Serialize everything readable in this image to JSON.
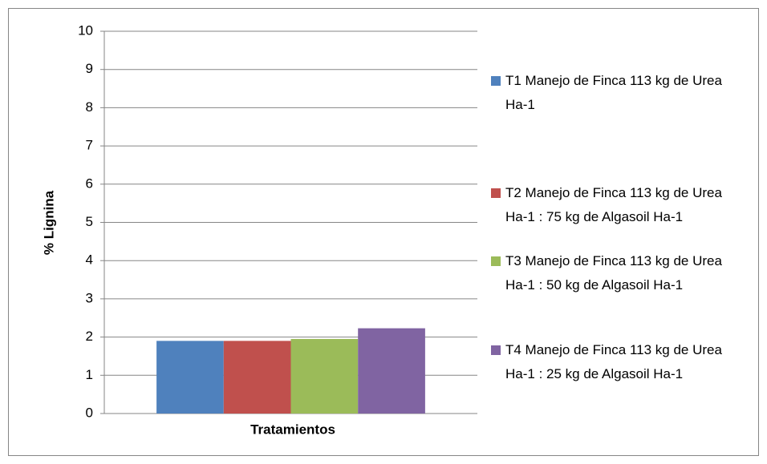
{
  "chart_data": {
    "type": "bar",
    "x_label": "Tratamientos",
    "y_label": "% Lignina",
    "categories": [
      null
    ],
    "series": [
      {
        "name": "T1 Manejo de Finca 113 kg de Urea Ha-1",
        "color": "#4f81bd",
        "values": [
          1.9
        ]
      },
      {
        "name": "T2 Manejo de Finca 113 kg de Urea Ha-1 : 75 kg de Algasoil Ha-1",
        "color": "#c0504d",
        "values": [
          1.9
        ]
      },
      {
        "name": "T3 Manejo de Finca 113 kg de Urea Ha-1 : 50 kg de Algasoil Ha-1",
        "color": "#9bbb59",
        "values": [
          1.95
        ]
      },
      {
        "name": "T4 Manejo de Finca 113 kg de Urea Ha-1 : 25 kg de Algasoil Ha-1",
        "color": "#8064a2",
        "values": [
          2.23
        ]
      }
    ],
    "ylim": [
      0,
      10
    ],
    "yticks": [
      0,
      1,
      2,
      3,
      4,
      5,
      6,
      7,
      8,
      9,
      10
    ],
    "grid": true,
    "legend": "right"
  }
}
